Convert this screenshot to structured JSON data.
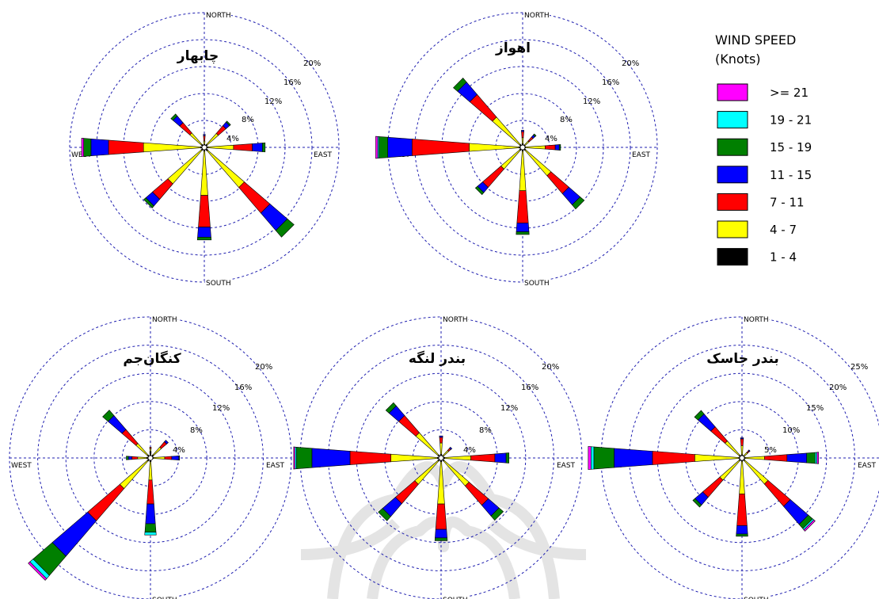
{
  "legend": {
    "title_line1": "WIND SPEED",
    "title_line2": "(Knots)",
    "items": [
      {
        "label": ">= 21",
        "color": "#ff00ff"
      },
      {
        "label": "19 - 21",
        "color": "#00ffff"
      },
      {
        "label": "15 - 19",
        "color": "#007f00"
      },
      {
        "label": "11 - 15",
        "color": "#0000ff"
      },
      {
        "label": "7 - 11",
        "color": "#ff0000"
      },
      {
        "label": "4 - 7",
        "color": "#ffff00"
      },
      {
        "label": "1 - 4",
        "color": "#000000"
      }
    ]
  },
  "chart_data": [
    {
      "type": "wind-rose",
      "title": "چابهار",
      "directions": [
        "N",
        "NE",
        "E",
        "SE",
        "S",
        "SW",
        "W",
        "NW"
      ],
      "speed_bins": [
        ">= 21",
        "19 - 21",
        "15 - 19",
        "11 - 15",
        "7 - 11",
        "4 - 7",
        "1 - 4"
      ],
      "ring_labels": [
        "4%",
        "8%",
        "12%",
        "16%",
        "20%"
      ],
      "ring_max": 20,
      "cardinal_labels": {
        "north": "NORTH",
        "south": "SOUTH",
        "east": "EAST",
        "west": "WEST"
      },
      "values": {
        "N": [
          0,
          0,
          0,
          0.2,
          0.8,
          0.5,
          0.2
        ],
        "NE": [
          0,
          0,
          0.2,
          0.7,
          1.5,
          2.2,
          0.3
        ],
        "E": [
          0,
          0,
          0.4,
          1.5,
          2.8,
          3.8,
          0.3
        ],
        "SE": [
          0,
          0,
          1.3,
          3.4,
          5.0,
          7.2,
          0.4
        ],
        "S": [
          0,
          0,
          0.4,
          1.5,
          4.7,
          6.6,
          0.3
        ],
        "SW": [
          0,
          0,
          0.4,
          1.3,
          3.0,
          6.6,
          0.3
        ],
        "W": [
          0.3,
          0,
          1.1,
          2.6,
          5.2,
          8.5,
          0.3
        ],
        "NW": [
          0,
          0,
          0.4,
          1.3,
          2.0,
          2.3,
          0.3
        ]
      }
    },
    {
      "type": "wind-rose",
      "title": "اهواز",
      "directions": [
        "N",
        "NE",
        "E",
        "SE",
        "S",
        "SW",
        "W",
        "NW"
      ],
      "speed_bins": [
        ">= 21",
        "19 - 21",
        "15 - 19",
        "11 - 15",
        "7 - 11",
        "4 - 7",
        "1 - 4"
      ],
      "ring_labels": [
        "4%",
        "8%",
        "12%",
        "16%",
        "20%"
      ],
      "ring_max": 20,
      "cardinal_labels": {
        "north": "NORTH",
        "south": "SOUTH",
        "east": "EAST",
        "west": "WEST"
      },
      "values": {
        "N": [
          0,
          0,
          0,
          0.2,
          0.9,
          0.9,
          0.3
        ],
        "NE": [
          0,
          0,
          0.2,
          0.4,
          0.8,
          0.8,
          0.2
        ],
        "E": [
          0,
          0,
          0.2,
          0.6,
          1.5,
          2.9,
          0.2
        ],
        "SE": [
          0,
          0,
          0.8,
          2.2,
          3.5,
          5.0,
          0.3
        ],
        "S": [
          0,
          0,
          0.4,
          1.3,
          4.8,
          5.9,
          0.3
        ],
        "SW": [
          0,
          0,
          0.4,
          1.0,
          3.6,
          3.7,
          0.3
        ],
        "W": [
          0.3,
          0.2,
          1.3,
          3.6,
          8.5,
          7.4,
          0.3
        ],
        "NW": [
          0,
          0,
          0.8,
          2.4,
          4.4,
          5.4,
          0.3
        ]
      }
    },
    {
      "type": "wind-rose",
      "title": "کنگان‌جم",
      "directions": [
        "N",
        "NE",
        "E",
        "SE",
        "S",
        "SW",
        "W",
        "NW"
      ],
      "speed_bins": [
        ">= 21",
        "19 - 21",
        "15 - 19",
        "11 - 15",
        "7 - 11",
        "4 - 7",
        "1 - 4"
      ],
      "ring_labels": [
        "4%",
        "8%",
        "12%",
        "16%",
        "20%"
      ],
      "ring_max": 20,
      "cardinal_labels": {
        "north": "NORTH",
        "south": "SOUTH",
        "east": "EAST",
        "west": "WEST"
      },
      "values": {
        "N": [
          0,
          0,
          0,
          0,
          0.2,
          0.4,
          0.7
        ],
        "NE": [
          0,
          0,
          0,
          0.3,
          1.0,
          1.5,
          0.3
        ],
        "E": [
          0,
          0,
          0.1,
          1.0,
          1.0,
          1.6,
          0.2
        ],
        "SE": [
          0,
          0,
          0,
          0,
          0,
          0,
          0
        ],
        "S": [
          0,
          0.4,
          1.2,
          2.8,
          3.4,
          2.6,
          0.3
        ],
        "SW": [
          0.3,
          0.6,
          3.6,
          6.6,
          6.0,
          5.2,
          0.3
        ],
        "W": [
          0,
          0,
          0.3,
          0.5,
          0.8,
          1.3,
          0.3
        ],
        "NW": [
          0,
          0,
          1.0,
          2.6,
          2.6,
          2.2,
          0.3
        ]
      }
    },
    {
      "type": "wind-rose",
      "title": "بندر لنگه",
      "directions": [
        "N",
        "NE",
        "E",
        "SE",
        "S",
        "SW",
        "W",
        "NW"
      ],
      "speed_bins": [
        ">= 21",
        "19 - 21",
        "15 - 19",
        "11 - 15",
        "7 - 11",
        "4 - 7",
        "1 - 4"
      ],
      "ring_labels": [
        "4%",
        "8%",
        "12%",
        "16%",
        "20%"
      ],
      "ring_max": 20,
      "cardinal_labels": {
        "north": "NORTH",
        "south": "SOUTH",
        "east": "EAST",
        "west": "WEST"
      },
      "values": {
        "N": [
          0,
          0,
          0,
          0.2,
          0.8,
          1.6,
          0.3
        ],
        "NE": [
          0,
          0,
          0,
          0.2,
          0.4,
          1.0,
          0.2
        ],
        "E": [
          0,
          0,
          0.4,
          1.6,
          3.4,
          3.7,
          0.3
        ],
        "SE": [
          0,
          0,
          0.8,
          2.0,
          3.6,
          4.7,
          0.3
        ],
        "S": [
          0,
          0,
          0.4,
          1.2,
          3.6,
          6.0,
          0.3
        ],
        "SW": [
          0,
          0,
          0.8,
          2.4,
          3.6,
          4.4,
          0.3
        ],
        "W": [
          0.2,
          0.2,
          2.2,
          5.4,
          5.8,
          6.6,
          0.3
        ],
        "NW": [
          0,
          0,
          0.6,
          1.8,
          3.2,
          4.2,
          0.3
        ]
      }
    },
    {
      "type": "wind-rose",
      "title": "بندر جاسک",
      "directions": [
        "N",
        "NE",
        "E",
        "SE",
        "S",
        "SW",
        "W",
        "NW"
      ],
      "speed_bins": [
        ">= 21",
        "19 - 21",
        "15 - 19",
        "11 - 15",
        "7 - 11",
        "4 - 7",
        "1 - 4"
      ],
      "ring_labels": [
        "5%",
        "10%",
        "15%",
        "20%",
        "25%"
      ],
      "ring_max": 25,
      "cardinal_labels": {
        "north": "NORTH",
        "south": "SOUTH",
        "east": "EAST",
        "west": "WEST"
      },
      "values": {
        "N": [
          0,
          0,
          0,
          0.2,
          1.2,
          1.6,
          0.3
        ],
        "NE": [
          0,
          0,
          0,
          0.2,
          0.4,
          0.8,
          0.2
        ],
        "E": [
          0.3,
          0.3,
          1.5,
          3.5,
          4.0,
          3.4,
          0.3
        ],
        "SE": [
          0.3,
          0.3,
          1.0,
          4.2,
          5.2,
          5.5,
          0.3
        ],
        "S": [
          0,
          0,
          0.4,
          1.5,
          5.6,
          5.8,
          0.3
        ],
        "SW": [
          0,
          0,
          0.5,
          1.8,
          4.0,
          4.6,
          0.3
        ],
        "W": [
          0.5,
          0.5,
          3.6,
          6.8,
          7.5,
          7.8,
          0.3
        ],
        "NW": [
          0,
          0,
          0.8,
          3.0,
          3.3,
          3.4,
          0.3
        ]
      }
    }
  ]
}
